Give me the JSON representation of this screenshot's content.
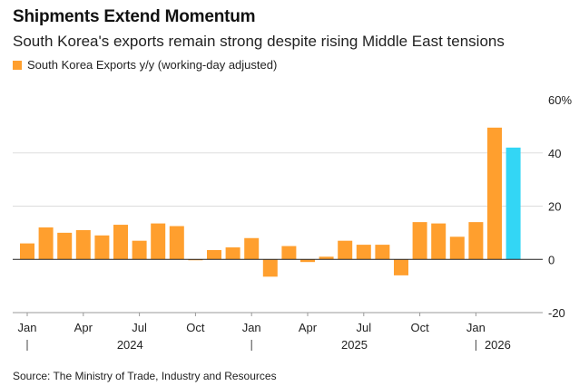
{
  "title": "Shipments Extend Momentum",
  "subtitle": "South Korea's exports remain strong despite rising Middle East tensions",
  "source": "Source: The Ministry of Trade, Industry and Resources",
  "colors": {
    "bar": "#ff9f2e",
    "highlight": "#33d6f5",
    "grid": "#dddddd",
    "baseline": "#222222"
  },
  "chart_data": {
    "type": "bar",
    "series": [
      {
        "name": "South Korea Exports y/y (working-day adjusted)",
        "categories": [
          "2024-01",
          "2024-02",
          "2024-03",
          "2024-04",
          "2024-05",
          "2024-06",
          "2024-07",
          "2024-08",
          "2024-09",
          "2024-10",
          "2024-11",
          "2024-12",
          "2025-01",
          "2025-02",
          "2025-03",
          "2025-04",
          "2025-05",
          "2025-06",
          "2025-07",
          "2025-08",
          "2025-09",
          "2025-10",
          "2025-11",
          "2025-12",
          "2026-01",
          "2026-02",
          "2026-03"
        ],
        "values": [
          6,
          12,
          10,
          11,
          9,
          13,
          7,
          13.5,
          12.5,
          0,
          3.5,
          4.5,
          8,
          -6.5,
          5,
          -1,
          1,
          7,
          5.5,
          5.5,
          -6,
          14,
          13.5,
          8.5,
          14,
          49.5,
          42
        ]
      }
    ],
    "highlight_index": 26,
    "ylim": [
      -20,
      60
    ],
    "y_ticks": [
      {
        "value": 60,
        "label": "60%"
      },
      {
        "value": 40,
        "label": "40"
      },
      {
        "value": 20,
        "label": "20"
      },
      {
        "value": 0,
        "label": "0"
      },
      {
        "value": -20,
        "label": "-20"
      }
    ],
    "x_ticks": [
      {
        "index": 0,
        "label": "Jan"
      },
      {
        "index": 3,
        "label": "Apr"
      },
      {
        "index": 6,
        "label": "Jul"
      },
      {
        "index": 9,
        "label": "Oct"
      },
      {
        "index": 12,
        "label": "Jan"
      },
      {
        "index": 15,
        "label": "Apr"
      },
      {
        "index": 18,
        "label": "Jul"
      },
      {
        "index": 21,
        "label": "Oct"
      },
      {
        "index": 24,
        "label": "Jan"
      }
    ],
    "year_labels": [
      {
        "start_index": 0,
        "label": "2024"
      },
      {
        "start_index": 12,
        "label": "2025"
      },
      {
        "start_index": 24,
        "label": "2026"
      }
    ],
    "grid": true
  }
}
